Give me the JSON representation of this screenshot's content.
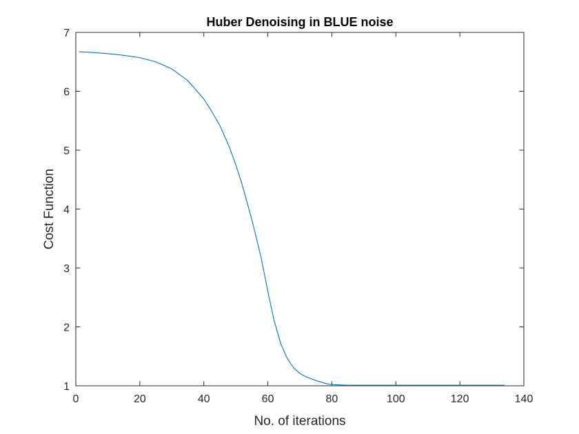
{
  "chart_data": {
    "type": "line",
    "title": "Huber Denoising in BLUE noise",
    "xlabel": "No. of iterations",
    "ylabel": "Cost Function",
    "xlim": [
      0,
      140
    ],
    "ylim": [
      1,
      7
    ],
    "xticks": [
      0,
      20,
      40,
      60,
      80,
      100,
      120,
      140
    ],
    "yticks": [
      1,
      2,
      3,
      4,
      5,
      6,
      7
    ],
    "xtick_labels": [
      "0",
      "20",
      "40",
      "60",
      "80",
      "100",
      "120",
      "140"
    ],
    "ytick_labels": [
      "1",
      "2",
      "3",
      "4",
      "5",
      "6",
      "7"
    ],
    "grid": false,
    "series": [
      {
        "color": "#0072bd",
        "x": [
          1,
          5,
          10,
          15,
          20,
          25,
          30,
          35,
          40,
          42,
          45,
          48,
          50,
          52,
          55,
          57,
          58,
          60,
          62,
          64,
          66,
          68,
          70,
          72,
          75,
          78,
          80,
          85,
          90,
          100,
          110,
          120,
          130,
          134
        ],
        "y": [
          6.67,
          6.66,
          6.64,
          6.61,
          6.57,
          6.5,
          6.38,
          6.18,
          5.87,
          5.7,
          5.42,
          5.05,
          4.75,
          4.41,
          3.82,
          3.38,
          3.15,
          2.6,
          2.1,
          1.72,
          1.47,
          1.31,
          1.21,
          1.15,
          1.09,
          1.04,
          1.02,
          1.01,
          1.01,
          1.01,
          1.01,
          1.01,
          1.01,
          1.01
        ]
      }
    ]
  }
}
